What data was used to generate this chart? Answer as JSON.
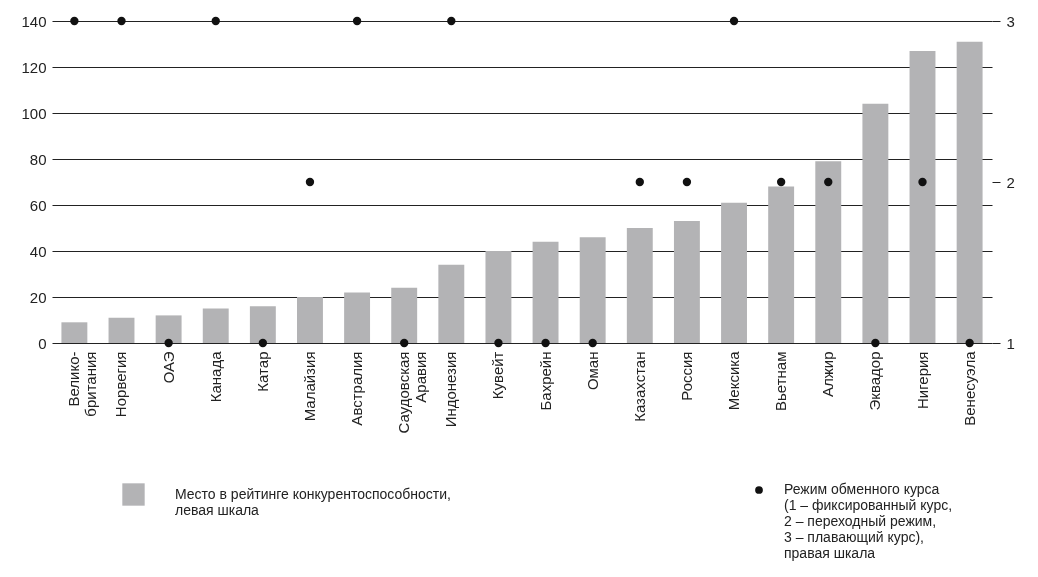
{
  "chart_data": {
    "type": "bar",
    "categories": [
      "Велико-\nбритания",
      "Норвегия",
      "ОАЭ",
      "Канада",
      "Катар",
      "Малайзия",
      "Австралия",
      "Саудовская\nАравия",
      "Индонезия",
      "Кувейт",
      "Бахрейн",
      "Оман",
      "Казахстан",
      "Россия",
      "Мексика",
      "Вьетнам",
      "Алжир",
      "Эквадор",
      "Нигерия",
      "Венесуэла"
    ],
    "series": [
      {
        "name": "Место в рейтинге конкурентоспособности,\nлевая шкала",
        "color": "#b3b3b5",
        "values": [
          9,
          11,
          12,
          15,
          16,
          20,
          22,
          24,
          34,
          40,
          44,
          46,
          50,
          53,
          61,
          68,
          79,
          104,
          127,
          131
        ]
      },
      {
        "name": "Режим обменного курса\n(1 – фиксированный курс,\n2 – переходный режим,\n3 – плавающий курс),\nправая шкала",
        "type": "scatter",
        "axis": "y2",
        "color": "#111111",
        "values": [
          3,
          3,
          1,
          3,
          1,
          2,
          3,
          1,
          3,
          1,
          1,
          1,
          2,
          2,
          3,
          2,
          2,
          1,
          2,
          1
        ]
      }
    ],
    "ylim": [
      0,
      140
    ],
    "yticks": [
      0,
      20,
      40,
      60,
      80,
      100,
      120,
      140
    ],
    "y2lim": [
      1,
      3
    ],
    "y2ticks": [
      1,
      2,
      3
    ],
    "grid": "y",
    "legend": "bottom",
    "marker": "circle"
  }
}
